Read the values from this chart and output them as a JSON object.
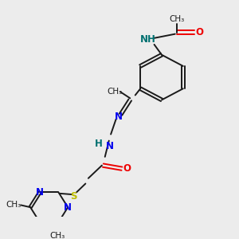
{
  "bg_color": "#ececec",
  "bond_color": "#1a1a1a",
  "N_color": "#0000ee",
  "O_color": "#ee0000",
  "S_color": "#bbbb00",
  "NH_color": "#007070",
  "figsize": [
    3.0,
    3.0
  ],
  "dpi": 100,
  "xlim": [
    0,
    10
  ],
  "ylim": [
    0,
    10
  ]
}
